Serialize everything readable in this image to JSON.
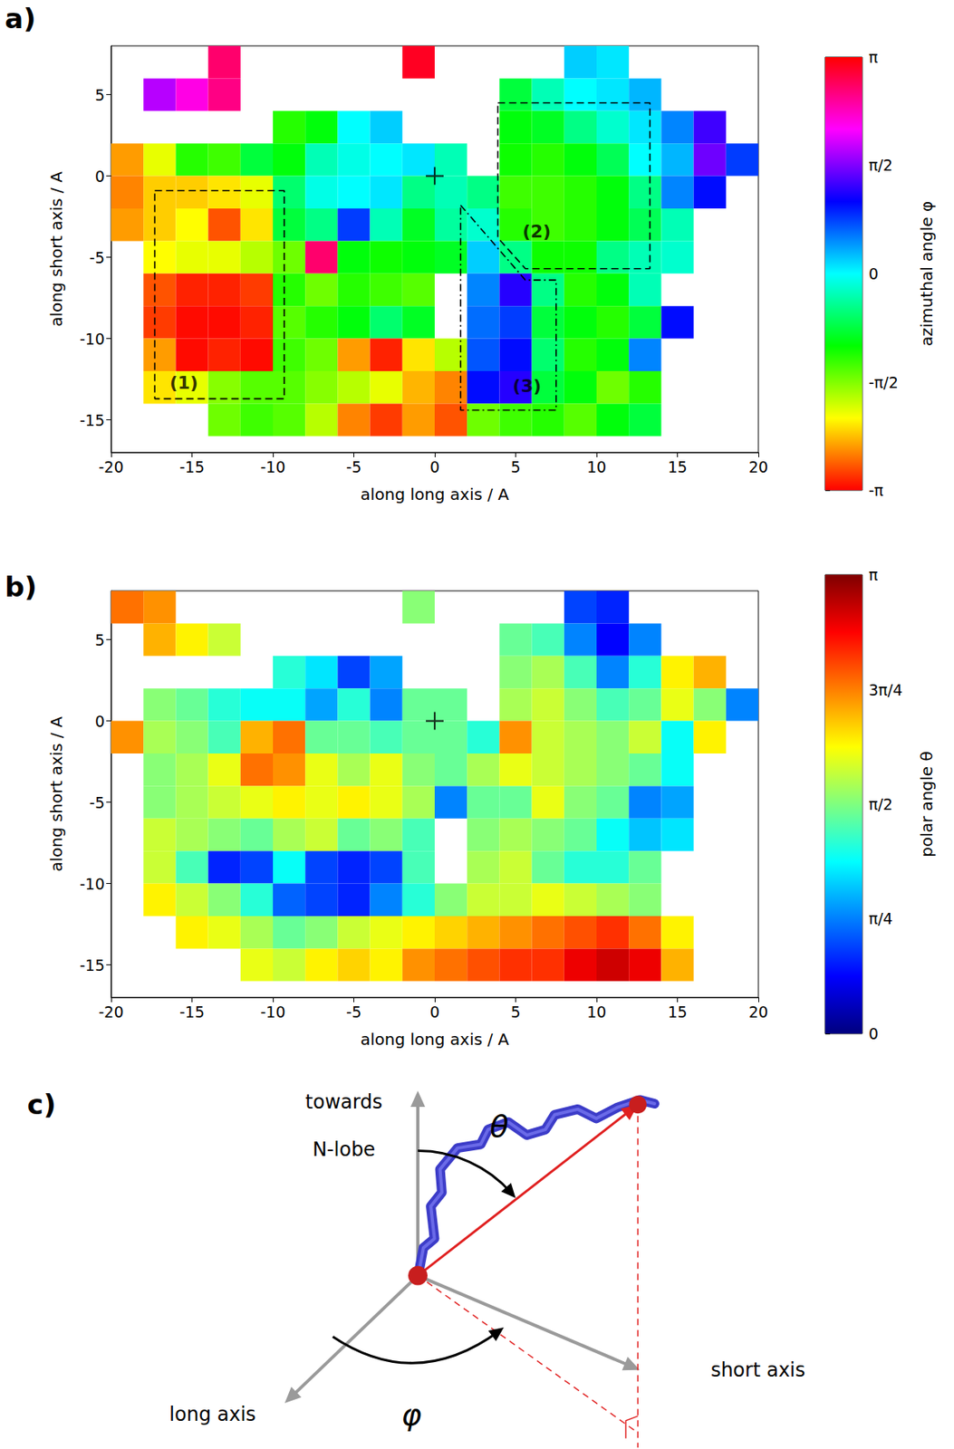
{
  "chart_data": [
    {
      "type": "heatmap",
      "panel_label": "a)",
      "x_label": "along long axis / A",
      "y_label": "along short axis / A",
      "xlim": [
        -20,
        20
      ],
      "ylim": [
        -17,
        8
      ],
      "xticks": [
        -20,
        -15,
        -10,
        -5,
        0,
        5,
        10,
        15,
        20
      ],
      "yticks": [
        -15,
        -10,
        -5,
        0,
        5
      ],
      "grid": false,
      "cell_size": 2,
      "x_centers": [
        -19,
        -17,
        -15,
        -13,
        -11,
        -9,
        -7,
        -5,
        -3,
        -1,
        1,
        3,
        5,
        7,
        9,
        11,
        13,
        15,
        17,
        19
      ],
      "y_centers": [
        7,
        5,
        3,
        1,
        -1,
        -3,
        -5,
        -7,
        -9,
        -11,
        -13,
        -15
      ],
      "cells": [
        [
          null,
          null,
          null,
          2.7,
          null,
          null,
          null,
          null,
          null,
          3.0,
          null,
          null,
          null,
          null,
          0.2,
          0.1,
          null,
          null,
          null,
          null
        ],
        [
          null,
          1.8,
          2.2,
          2.6,
          null,
          null,
          null,
          null,
          null,
          null,
          null,
          null,
          -0.8,
          -0.3,
          0.0,
          0.1,
          0.3,
          null,
          null,
          null
        ],
        [
          null,
          null,
          null,
          null,
          null,
          -1.2,
          -1.0,
          0.0,
          0.2,
          null,
          null,
          null,
          -1.0,
          -0.9,
          -0.5,
          -0.2,
          0.1,
          0.5,
          1.3,
          null
        ],
        [
          -2.5,
          -2.0,
          -1.2,
          -1.3,
          -0.8,
          -1.0,
          -0.3,
          -0.1,
          0.0,
          0.1,
          -0.3,
          null,
          -1.1,
          -1.2,
          -1.0,
          -0.7,
          0.0,
          0.3,
          1.5,
          0.8
        ],
        [
          -2.6,
          -2.3,
          -2.3,
          -2.2,
          -2.0,
          -0.6,
          -0.1,
          0.0,
          0.1,
          -0.5,
          -0.3,
          -0.5,
          -1.3,
          -1.3,
          -1.2,
          -1.0,
          -0.5,
          0.5,
          1.0,
          null
        ],
        [
          -2.5,
          -2.3,
          -2.1,
          -2.8,
          -2.2,
          -0.8,
          -0.5,
          0.8,
          -0.3,
          -0.9,
          -0.4,
          -0.2,
          -1.2,
          -1.3,
          -1.2,
          -1.0,
          -0.7,
          -0.3,
          null,
          null
        ],
        [
          null,
          -2.1,
          -2.0,
          -2.0,
          -1.8,
          -1.5,
          2.7,
          -1.0,
          -1.1,
          -1.0,
          -0.9,
          0.2,
          -0.5,
          -1.1,
          -1.1,
          -0.5,
          -0.3,
          -0.2,
          null,
          null
        ],
        [
          null,
          -2.8,
          -3.0,
          -3.0,
          -2.9,
          -1.2,
          -1.5,
          -1.2,
          -1.3,
          -1.4,
          null,
          0.5,
          1.2,
          -0.5,
          -1.2,
          -1.0,
          -0.3,
          null,
          null,
          null
        ],
        [
          null,
          -2.9,
          -3.1,
          -3.1,
          -3.0,
          -1.4,
          -1.2,
          -1.0,
          -0.6,
          -0.9,
          null,
          0.6,
          0.8,
          -0.8,
          -1.0,
          -1.2,
          -0.8,
          1.0,
          null,
          null
        ],
        [
          null,
          -2.5,
          -3.1,
          -3.0,
          -3.1,
          -1.3,
          -1.5,
          -2.5,
          -3.0,
          -2.2,
          -1.8,
          0.7,
          1.0,
          -0.6,
          -1.2,
          -1.0,
          0.5,
          null,
          null,
          null
        ],
        [
          null,
          -2.2,
          -2.0,
          -1.6,
          -1.4,
          -1.4,
          -1.6,
          -1.8,
          -2.0,
          -2.4,
          -2.6,
          1.0,
          1.2,
          -0.8,
          -1.0,
          -1.5,
          -1.2,
          null,
          null,
          null
        ],
        [
          null,
          null,
          null,
          -1.5,
          -1.3,
          -1.4,
          -1.8,
          -2.6,
          -2.9,
          -2.5,
          -2.8,
          -1.5,
          -1.3,
          -1.2,
          -1.4,
          -1.0,
          -0.8,
          null,
          null,
          null
        ]
      ],
      "colorbar": {
        "label": "azimuthal angle φ",
        "range": [
          -3.14159,
          3.14159
        ],
        "ticks": [
          {
            "value": 3.14159,
            "label": "π"
          },
          {
            "value": 1.5708,
            "label": "π/2"
          },
          0,
          {
            "value": -1.5708,
            "label": "-π/2"
          },
          {
            "value": -3.14159,
            "label": "-π"
          }
        ]
      },
      "origin": {
        "marker": "+",
        "x": 0,
        "y": 0
      },
      "annotations": [
        {
          "label": "(1)",
          "line_style": "dashed",
          "path": [
            [
              -17.3,
              -0.9
            ],
            [
              -9.3,
              -0.9
            ],
            [
              -9.3,
              -13.7
            ],
            [
              -17.3,
              -13.7
            ],
            [
              -17.3,
              -0.9
            ]
          ],
          "label_at": [
            -15.5,
            -12.7
          ]
        },
        {
          "label": "(2)",
          "line_style": "dashed",
          "path": [
            [
              3.9,
              4.5
            ],
            [
              13.3,
              4.5
            ],
            [
              13.3,
              -5.7
            ],
            [
              5.6,
              -5.7
            ],
            [
              3.9,
              -3.8
            ],
            [
              3.9,
              4.5
            ]
          ],
          "label_at": [
            6.3,
            -3.4
          ]
        },
        {
          "label": "(3)",
          "line_style": "dashdot",
          "path": [
            [
              1.6,
              -1.8
            ],
            [
              5.6,
              -6.4
            ],
            [
              7.5,
              -6.4
            ],
            [
              7.5,
              -14.4
            ],
            [
              1.6,
              -14.4
            ],
            [
              1.6,
              -1.8
            ]
          ],
          "label_at": [
            5.7,
            -12.9
          ]
        }
      ]
    },
    {
      "type": "heatmap",
      "panel_label": "b)",
      "x_label": "along long axis / A",
      "y_label": "along short axis / A",
      "xlim": [
        -20,
        20
      ],
      "ylim": [
        -17,
        8
      ],
      "xticks": [
        -20,
        -15,
        -10,
        -5,
        0,
        5,
        10,
        15,
        20
      ],
      "yticks": [
        -15,
        -10,
        -5,
        0,
        5
      ],
      "grid": false,
      "cell_size": 2,
      "x_centers": [
        -19,
        -17,
        -15,
        -13,
        -11,
        -9,
        -7,
        -5,
        -3,
        -1,
        1,
        3,
        5,
        7,
        9,
        11,
        13,
        15,
        17,
        19
      ],
      "y_centers": [
        7,
        5,
        3,
        1,
        -1,
        -3,
        -5,
        -7,
        -9,
        -11,
        -13,
        -15
      ],
      "cells": [
        [
          2.4,
          2.3,
          null,
          null,
          null,
          null,
          null,
          null,
          null,
          1.6,
          null,
          null,
          null,
          null,
          0.6,
          0.5,
          null,
          null,
          null,
          null
        ],
        [
          null,
          2.2,
          2.0,
          1.8,
          null,
          null,
          null,
          null,
          null,
          null,
          null,
          null,
          1.5,
          1.4,
          0.8,
          0.4,
          0.8,
          null,
          null,
          null
        ],
        [
          null,
          null,
          null,
          null,
          null,
          1.3,
          1.1,
          0.6,
          0.9,
          null,
          null,
          null,
          1.6,
          1.7,
          1.4,
          0.8,
          1.3,
          2.0,
          2.2,
          null
        ],
        [
          null,
          1.6,
          1.5,
          1.3,
          1.2,
          1.2,
          0.9,
          1.3,
          0.8,
          1.5,
          1.5,
          null,
          1.7,
          1.8,
          1.6,
          1.4,
          1.5,
          1.9,
          1.6,
          0.8
        ],
        [
          2.3,
          1.7,
          1.6,
          1.4,
          2.2,
          2.4,
          1.5,
          1.5,
          1.4,
          1.5,
          1.5,
          1.3,
          2.3,
          1.8,
          1.7,
          1.6,
          1.8,
          1.2,
          2.0,
          null
        ],
        [
          null,
          1.6,
          1.7,
          1.9,
          2.4,
          2.3,
          1.9,
          1.7,
          1.9,
          1.6,
          1.5,
          1.7,
          1.9,
          1.8,
          1.7,
          1.6,
          1.5,
          1.2,
          null,
          null
        ],
        [
          null,
          1.6,
          1.7,
          1.8,
          1.9,
          2.0,
          1.9,
          2.0,
          1.9,
          1.7,
          0.8,
          1.5,
          1.5,
          1.9,
          1.6,
          1.5,
          0.8,
          0.9,
          null,
          null
        ],
        [
          null,
          1.8,
          1.7,
          1.6,
          1.5,
          1.7,
          1.8,
          1.5,
          1.6,
          1.4,
          null,
          1.6,
          1.7,
          1.6,
          1.5,
          1.2,
          1.0,
          1.1,
          null,
          null
        ],
        [
          null,
          1.8,
          1.4,
          0.5,
          0.6,
          1.2,
          0.6,
          0.5,
          0.6,
          1.4,
          null,
          1.7,
          1.8,
          1.5,
          1.3,
          1.3,
          1.5,
          null,
          null,
          null
        ],
        [
          null,
          2.0,
          1.8,
          1.6,
          1.3,
          0.7,
          0.6,
          0.5,
          0.8,
          1.3,
          1.6,
          1.8,
          1.8,
          1.9,
          1.8,
          1.7,
          1.6,
          null,
          null,
          null
        ],
        [
          null,
          null,
          2.0,
          1.9,
          1.7,
          1.5,
          1.6,
          1.8,
          1.9,
          2.0,
          2.1,
          2.2,
          2.3,
          2.4,
          2.5,
          2.6,
          2.4,
          2.0,
          null,
          null
        ],
        [
          null,
          null,
          null,
          null,
          1.9,
          1.8,
          2.0,
          2.1,
          2.0,
          2.3,
          2.4,
          2.5,
          2.6,
          2.6,
          2.8,
          2.9,
          2.8,
          2.2,
          null,
          null
        ]
      ],
      "colorbar": {
        "label": "polar angle θ",
        "range": [
          0,
          3.14159
        ],
        "ticks": [
          0,
          {
            "value": 0.7854,
            "label": "π/4"
          },
          {
            "value": 1.5708,
            "label": "π/2"
          },
          {
            "value": 2.35619,
            "label": "3π/4"
          },
          {
            "value": 3.14159,
            "label": "π"
          }
        ]
      },
      "origin": {
        "marker": "+",
        "x": 0,
        "y": 0
      }
    }
  ],
  "diagram": {
    "label": "c)",
    "axes": {
      "up": [
        "towards",
        "N-lobe"
      ],
      "long": "long axis",
      "short": "short axis"
    },
    "angles": {
      "polar": "θ",
      "azimuthal": "φ"
    }
  }
}
